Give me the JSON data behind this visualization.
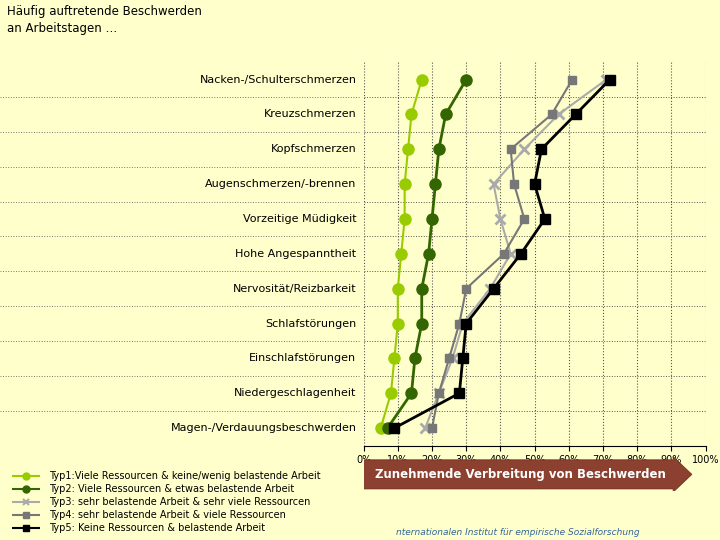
{
  "title": "Häufig auftretende Beschwerden\nan Arbeitstagen …",
  "categories": [
    "Nacken-/Schulterschmerzen",
    "Kreuzschmerzen",
    "Kopfschmerzen",
    "Augenschmerzen/-brennen",
    "Vorzeitige Müdigkeit",
    "Hohe Angespanntheit",
    "Nervosität/Reizbarkeit",
    "Schlafstörungen",
    "Einschlafstörungen",
    "Niedergeschlagenheit",
    "Magen-/Verdauungsbeschwerden"
  ],
  "series": [
    {
      "name": "Typ1:Viele Ressourcen & keine/wenig belastende Arbeit",
      "color": "#99cc00",
      "marker": "o",
      "linewidth": 1.5,
      "markersize": 8,
      "values": [
        17,
        14,
        13,
        12,
        12,
        11,
        10,
        10,
        9,
        8,
        5
      ]
    },
    {
      "name": "Typ2: Viele Ressourcen & etwas belastende Arbeit",
      "color": "#336600",
      "marker": "o",
      "linewidth": 2,
      "markersize": 8,
      "values": [
        30,
        24,
        22,
        21,
        20,
        19,
        17,
        17,
        15,
        14,
        7
      ]
    },
    {
      "name": "Typ3: sehr belastende Arbeit & sehr viele Ressourcen",
      "color": "#aaaaaa",
      "marker": "x",
      "linewidth": 1.5,
      "markersize": 7,
      "values": [
        71,
        57,
        47,
        38,
        40,
        43,
        37,
        29,
        26,
        22,
        18
      ]
    },
    {
      "name": "Typ4: sehr belastende Arbeit & viele Ressourcen",
      "color": "#777777",
      "marker": "s",
      "linewidth": 1.5,
      "markersize": 6,
      "values": [
        61,
        55,
        43,
        44,
        47,
        41,
        30,
        28,
        25,
        22,
        20
      ]
    },
    {
      "name": "Typ5: Keine Ressourcen & belastende Arbeit",
      "color": "#000000",
      "marker": "s",
      "linewidth": 2,
      "markersize": 7,
      "values": [
        72,
        62,
        52,
        50,
        53,
        46,
        38,
        30,
        29,
        28,
        9
      ]
    }
  ],
  "xlim": [
    0,
    100
  ],
  "xticks": [
    0,
    10,
    20,
    30,
    40,
    50,
    60,
    70,
    80,
    90,
    100
  ],
  "xlabel_arrow": "Zunehmende Verbreitung von Beschwerden",
  "background_color": "#ffffcc",
  "footer": "nternationalen Institut für empirische Sozialforschung",
  "arrow_color": "#8B4030",
  "arrow_text_color": "#ffffff"
}
